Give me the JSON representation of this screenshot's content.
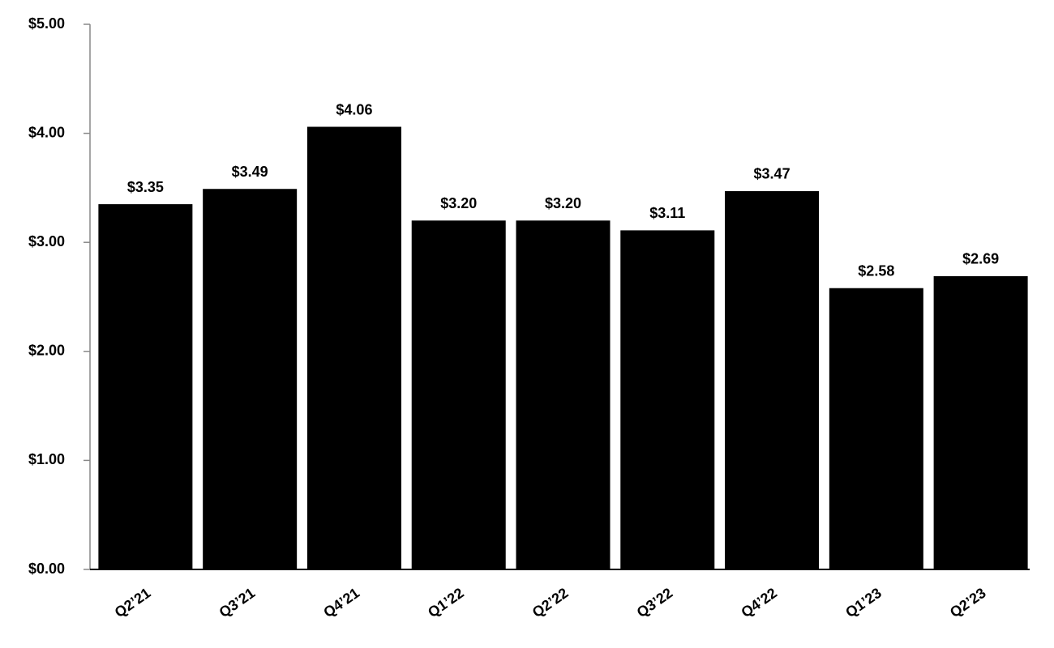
{
  "chart_data": {
    "type": "bar",
    "categories": [
      "Q2’21",
      "Q3’21",
      "Q4’21",
      "Q1’22",
      "Q2’22",
      "Q3’22",
      "Q4’22",
      "Q1’23",
      "Q2’23"
    ],
    "values": [
      3.35,
      3.49,
      4.06,
      3.2,
      3.2,
      3.11,
      3.47,
      2.58,
      2.69
    ],
    "value_labels": [
      "$3.35",
      "$3.49",
      "$4.06",
      "$3.20",
      "$3.20",
      "$3.11",
      "$3.47",
      "$2.58",
      "$2.69"
    ],
    "color": "#000000",
    "ylim": [
      0,
      5
    ],
    "yticks": [
      {
        "value": 0,
        "label": "$0.00"
      },
      {
        "value": 1,
        "label": "$1.00"
      },
      {
        "value": 2,
        "label": "$2.00"
      },
      {
        "value": 3,
        "label": "$3.00"
      },
      {
        "value": 4,
        "label": "$4.00"
      },
      {
        "value": 5,
        "label": "$5.00"
      }
    ],
    "grid": false
  }
}
